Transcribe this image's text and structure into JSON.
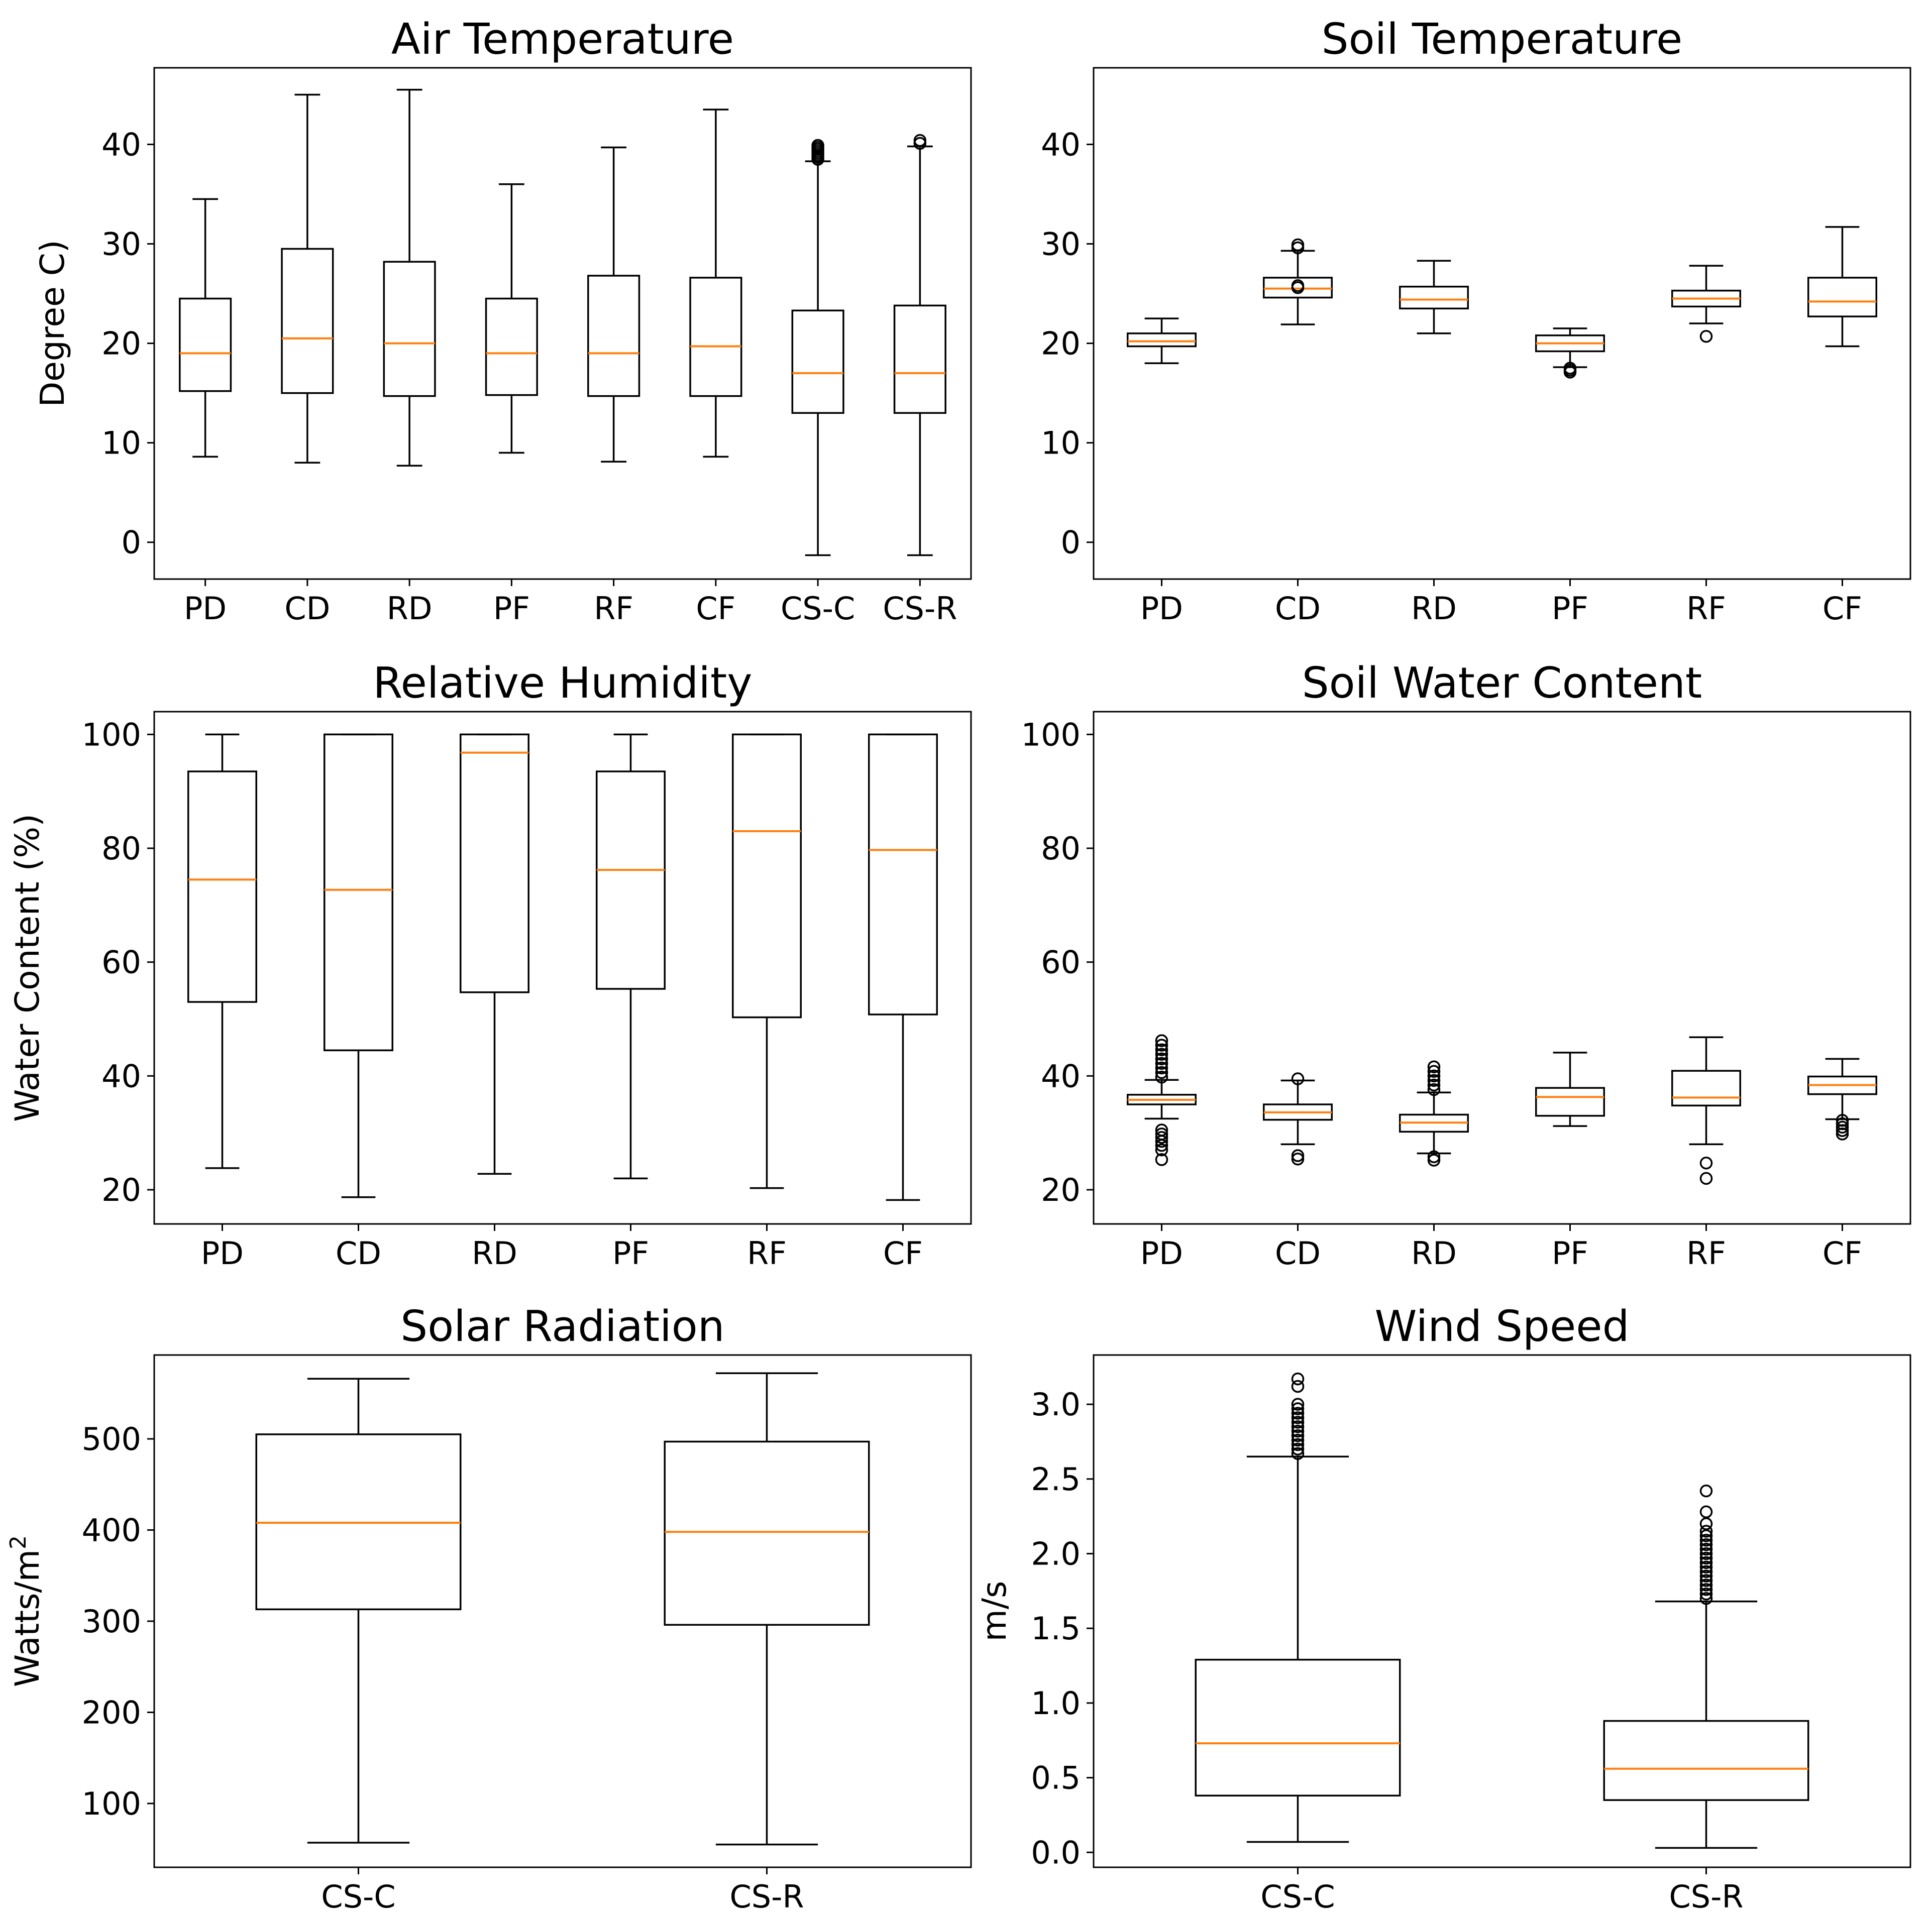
{
  "colors": {
    "median": "#ff7f0e",
    "line": "#000000",
    "background": "#ffffff"
  },
  "chart_data": [
    {
      "type": "boxplot",
      "title": "Air Temperature",
      "ylabel": "Degree C)",
      "ylim": [
        -3.7,
        47.7
      ],
      "yticks": [
        0,
        10,
        20,
        30,
        40
      ],
      "ytick_labels": [
        "0",
        "10",
        "20",
        "30",
        "40"
      ],
      "categories": [
        "PD",
        "CD",
        "RD",
        "PF",
        "RF",
        "CF",
        "CS-C",
        "CS-R"
      ],
      "boxes": [
        {
          "whislo": 8.6,
          "q1": 15.2,
          "med": 19.0,
          "q3": 24.5,
          "whishi": 34.5,
          "fliers": []
        },
        {
          "whislo": 8.0,
          "q1": 15.0,
          "med": 20.5,
          "q3": 29.5,
          "whishi": 45.0,
          "fliers": []
        },
        {
          "whislo": 7.7,
          "q1": 14.7,
          "med": 20.0,
          "q3": 28.2,
          "whishi": 45.5,
          "fliers": []
        },
        {
          "whislo": 9.0,
          "q1": 14.8,
          "med": 19.0,
          "q3": 24.5,
          "whishi": 36.0,
          "fliers": []
        },
        {
          "whislo": 8.1,
          "q1": 14.7,
          "med": 19.0,
          "q3": 26.8,
          "whishi": 39.7,
          "fliers": []
        },
        {
          "whislo": 8.6,
          "q1": 14.7,
          "med": 19.7,
          "q3": 26.6,
          "whishi": 43.5,
          "fliers": []
        },
        {
          "whislo": -1.3,
          "q1": 13.0,
          "med": 17.0,
          "q3": 23.3,
          "whishi": 38.3,
          "fliers": [
            38.5,
            38.7,
            38.9,
            39.1,
            39.3,
            39.5,
            39.7,
            39.9
          ]
        },
        {
          "whislo": -1.3,
          "q1": 13.0,
          "med": 17.0,
          "q3": 23.8,
          "whishi": 39.8,
          "fliers": [
            40.1,
            40.4
          ]
        }
      ]
    },
    {
      "type": "boxplot",
      "title": "Soil Temperature",
      "ylabel": "",
      "ylim": [
        -3.7,
        47.7
      ],
      "yticks": [
        0,
        10,
        20,
        30,
        40
      ],
      "ytick_labels": [
        "0",
        "10",
        "20",
        "30",
        "40"
      ],
      "categories": [
        "PD",
        "CD",
        "RD",
        "PF",
        "RF",
        "CF"
      ],
      "boxes": [
        {
          "whislo": 18.0,
          "q1": 19.7,
          "med": 20.2,
          "q3": 21.0,
          "whishi": 22.5,
          "fliers": []
        },
        {
          "whislo": 21.9,
          "q1": 24.6,
          "med": 25.5,
          "q3": 26.6,
          "whishi": 29.3,
          "fliers": [
            25.6,
            25.8,
            29.6,
            29.9
          ]
        },
        {
          "whislo": 21.0,
          "q1": 23.5,
          "med": 24.4,
          "q3": 25.7,
          "whishi": 28.3,
          "fliers": []
        },
        {
          "whislo": 17.6,
          "q1": 19.2,
          "med": 20.0,
          "q3": 20.8,
          "whishi": 21.5,
          "fliers": [
            17.1,
            17.3,
            17.5
          ]
        },
        {
          "whislo": 22.0,
          "q1": 23.7,
          "med": 24.5,
          "q3": 25.3,
          "whishi": 27.8,
          "fliers": [
            20.7
          ]
        },
        {
          "whislo": 19.7,
          "q1": 22.7,
          "med": 24.2,
          "q3": 26.6,
          "whishi": 31.7,
          "fliers": []
        }
      ]
    },
    {
      "type": "boxplot",
      "title": "Relative Humidity",
      "ylabel": "Water Content (%)",
      "ylim": [
        14.0,
        104.0
      ],
      "yticks": [
        20,
        40,
        60,
        80,
        100
      ],
      "ytick_labels": [
        "20",
        "40",
        "60",
        "80",
        "100"
      ],
      "categories": [
        "PD",
        "CD",
        "RD",
        "PF",
        "RF",
        "CF"
      ],
      "boxes": [
        {
          "whislo": 23.8,
          "q1": 53.0,
          "med": 74.5,
          "q3": 93.5,
          "whishi": 100.0,
          "fliers": []
        },
        {
          "whislo": 18.7,
          "q1": 44.5,
          "med": 72.7,
          "q3": 100.0,
          "whishi": 100.0,
          "fliers": []
        },
        {
          "whislo": 22.8,
          "q1": 54.7,
          "med": 96.8,
          "q3": 100.0,
          "whishi": 100.0,
          "fliers": []
        },
        {
          "whislo": 22.0,
          "q1": 55.3,
          "med": 76.2,
          "q3": 93.5,
          "whishi": 100.0,
          "fliers": []
        },
        {
          "whislo": 20.3,
          "q1": 50.3,
          "med": 83.0,
          "q3": 100.0,
          "whishi": 100.0,
          "fliers": []
        },
        {
          "whislo": 18.2,
          "q1": 50.8,
          "med": 79.7,
          "q3": 100.0,
          "whishi": 100.0,
          "fliers": []
        }
      ]
    },
    {
      "type": "boxplot",
      "title": "Soil Water Content",
      "ylabel": "",
      "ylim": [
        14.0,
        104.0
      ],
      "yticks": [
        20,
        40,
        60,
        80,
        100
      ],
      "ytick_labels": [
        "20",
        "40",
        "60",
        "80",
        "100"
      ],
      "categories": [
        "PD",
        "CD",
        "RD",
        "PF",
        "RF",
        "CF"
      ],
      "boxes": [
        {
          "whislo": 32.5,
          "q1": 35.0,
          "med": 35.8,
          "q3": 36.7,
          "whishi": 39.3,
          "fliers": [
            25.3,
            27.0,
            27.8,
            28.5,
            29.2,
            29.8,
            30.5,
            39.8,
            40.6,
            41.4,
            42.2,
            43.0,
            43.8,
            44.6,
            45.4,
            46.2
          ]
        },
        {
          "whislo": 28.0,
          "q1": 32.3,
          "med": 33.6,
          "q3": 35.0,
          "whishi": 39.2,
          "fliers": [
            25.4,
            26.0,
            39.5
          ]
        },
        {
          "whislo": 26.4,
          "q1": 30.2,
          "med": 31.8,
          "q3": 33.2,
          "whishi": 37.1,
          "fliers": [
            25.2,
            25.8,
            37.6,
            38.4,
            39.2,
            40.0,
            40.8,
            41.6
          ]
        },
        {
          "whislo": 31.2,
          "q1": 33.0,
          "med": 36.3,
          "q3": 37.9,
          "whishi": 44.1,
          "fliers": []
        },
        {
          "whislo": 28.0,
          "q1": 34.8,
          "med": 36.2,
          "q3": 40.9,
          "whishi": 46.8,
          "fliers": [
            22.0,
            24.7
          ]
        },
        {
          "whislo": 32.4,
          "q1": 36.8,
          "med": 38.4,
          "q3": 39.9,
          "whishi": 43.0,
          "fliers": [
            29.8,
            30.4,
            31.0,
            31.6,
            32.2
          ]
        }
      ]
    },
    {
      "type": "boxplot",
      "title": "Solar Radiation",
      "ylabel": "Watts/m",
      "ylabel_sup": "2",
      "ylim": [
        30,
        592
      ],
      "yticks": [
        100,
        200,
        300,
        400,
        500
      ],
      "ytick_labels": [
        "100",
        "200",
        "300",
        "400",
        "500"
      ],
      "categories": [
        "CS-C",
        "CS-R"
      ],
      "boxes": [
        {
          "whislo": 57,
          "q1": 313,
          "med": 408,
          "q3": 505,
          "whishi": 566,
          "fliers": []
        },
        {
          "whislo": 55,
          "q1": 296,
          "med": 398,
          "q3": 497,
          "whishi": 572,
          "fliers": []
        }
      ]
    },
    {
      "type": "boxplot",
      "title": "Wind Speed",
      "ylabel": "m/s",
      "ylim": [
        -0.1,
        3.33
      ],
      "yticks": [
        0.0,
        0.5,
        1.0,
        1.5,
        2.0,
        2.5,
        3.0
      ],
      "ytick_labels": [
        "0.0",
        "0.5",
        "1.0",
        "1.5",
        "2.0",
        "2.5",
        "3.0"
      ],
      "categories": [
        "CS-C",
        "CS-R"
      ],
      "boxes": [
        {
          "whislo": 0.07,
          "q1": 0.38,
          "med": 0.73,
          "q3": 1.29,
          "whishi": 2.65,
          "fliers": [
            2.67,
            2.7,
            2.73,
            2.76,
            2.79,
            2.82,
            2.85,
            2.88,
            2.91,
            2.94,
            2.97,
            3.0,
            3.12,
            3.17
          ]
        },
        {
          "whislo": 0.03,
          "q1": 0.35,
          "med": 0.56,
          "q3": 0.88,
          "whishi": 1.68,
          "fliers": [
            1.7,
            1.73,
            1.76,
            1.79,
            1.82,
            1.85,
            1.88,
            1.91,
            1.94,
            1.97,
            2.0,
            2.03,
            2.06,
            2.09,
            2.12,
            2.15,
            2.2,
            2.28,
            2.42
          ]
        }
      ]
    }
  ]
}
